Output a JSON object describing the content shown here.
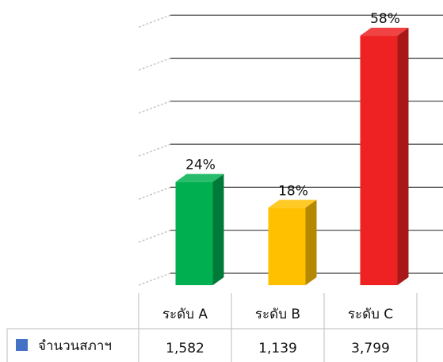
{
  "chart_data": {
    "type": "bar",
    "categories": [
      "ระดับ A",
      "ระดับ B",
      "ระดับ C"
    ],
    "series": [
      {
        "name": "จำนวนสภาฯ",
        "values": [
          1582,
          1139,
          3799
        ]
      }
    ],
    "value_labels": [
      "1,582",
      "1,139",
      "3,799"
    ],
    "percent_labels": [
      "24%",
      "18%",
      "58%"
    ],
    "percent_values": [
      24,
      18,
      58
    ],
    "ylim": [
      0,
      70
    ],
    "grid": true,
    "legend": "data-table",
    "bar_colors": [
      "#00b050",
      "#ffc000",
      "#ee2222"
    ],
    "bar_side_colors": [
      "#007a38",
      "#b48800",
      "#a81818"
    ],
    "legend_color": "#4472c4",
    "title": "",
    "xlabel": "",
    "ylabel": ""
  }
}
